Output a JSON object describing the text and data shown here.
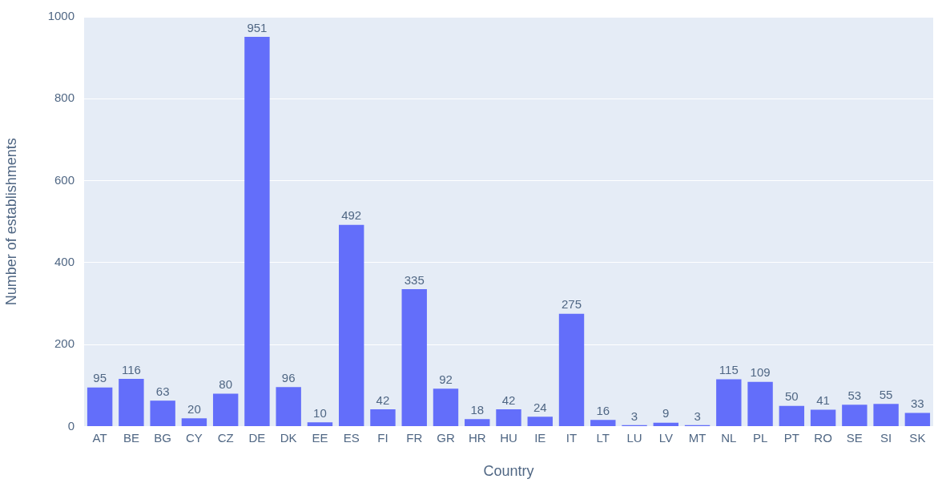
{
  "chart_data": {
    "type": "bar",
    "xlabel": "Country",
    "ylabel": "Number of establishments",
    "categories": [
      "AT",
      "BE",
      "BG",
      "CY",
      "CZ",
      "DE",
      "DK",
      "EE",
      "ES",
      "FI",
      "FR",
      "GR",
      "HR",
      "HU",
      "IE",
      "IT",
      "LT",
      "LU",
      "LV",
      "MT",
      "NL",
      "PL",
      "PT",
      "RO",
      "SE",
      "SI",
      "SK"
    ],
    "values": [
      95,
      116,
      63,
      20,
      80,
      951,
      96,
      10,
      492,
      42,
      335,
      92,
      18,
      42,
      24,
      275,
      16,
      3,
      9,
      3,
      115,
      109,
      50,
      41,
      53,
      55,
      33
    ],
    "color": "#636efa",
    "ylim": [
      0,
      1000
    ],
    "yticks": [
      0,
      200,
      400,
      600,
      800,
      1000
    ],
    "grid": "y",
    "data_labels": true,
    "legend": false
  }
}
